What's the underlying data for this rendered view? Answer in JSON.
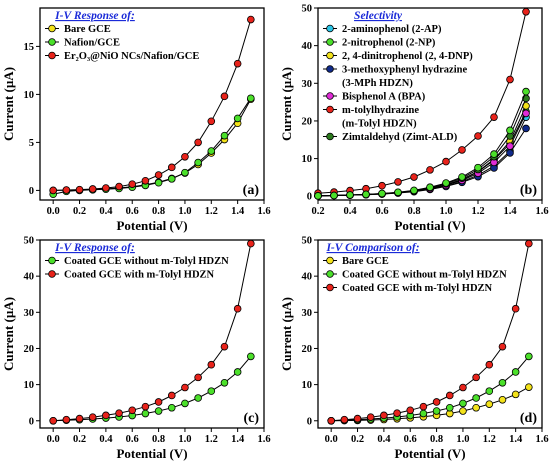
{
  "colors": {
    "yellow": "#f3e21a",
    "green": "#4be02a",
    "red": "#e8231b",
    "cyan": "#2bc6e8",
    "navy": "#102a8a",
    "magenta": "#e02bd6",
    "darkgreen": "#2c7a1e",
    "legend_title": "#1a2ad8",
    "line": "#000000"
  },
  "chart_data": [
    {
      "panel": "(a)",
      "type": "line",
      "legend_title": "I-V Response of:",
      "legend_position": "top-left",
      "xlabel": "Potential (V)",
      "ylabel": "Current (µA)",
      "xlim": [
        -0.1,
        1.6
      ],
      "ylim": [
        -1,
        19
      ],
      "xticks": [
        "0.0",
        "0.2",
        "0.4",
        "0.6",
        "0.8",
        "1.0",
        "1.2",
        "1.4",
        "1.6"
      ],
      "yticks": [
        "0",
        "5",
        "10",
        "15"
      ],
      "x": [
        0.0,
        0.1,
        0.2,
        0.3,
        0.4,
        0.5,
        0.6,
        0.7,
        0.8,
        0.9,
        1.0,
        1.1,
        1.2,
        1.3,
        1.4,
        1.5
      ],
      "series": [
        {
          "name": "Bare GCE",
          "color": "yellow",
          "values": [
            0.0,
            0.02,
            0.05,
            0.1,
            0.16,
            0.25,
            0.38,
            0.58,
            0.85,
            1.25,
            1.8,
            2.7,
            3.9,
            5.3,
            7.0,
            9.5
          ]
        },
        {
          "name": "Nafion/GCE",
          "color": "green",
          "values": [
            -0.4,
            -0.1,
            0.0,
            0.06,
            0.12,
            0.2,
            0.33,
            0.52,
            0.8,
            1.2,
            1.85,
            2.9,
            4.1,
            5.7,
            7.5,
            9.6
          ]
        },
        {
          "name": "Er₂O₃@NiO NCs/Nafion/GCE",
          "color": "red",
          "values": [
            0.0,
            0.04,
            0.08,
            0.15,
            0.25,
            0.4,
            0.65,
            1.0,
            1.6,
            2.4,
            3.5,
            5.0,
            7.2,
            9.8,
            13.2,
            17.8
          ]
        }
      ]
    },
    {
      "panel": "(b)",
      "type": "line",
      "legend_title": "Selectivity",
      "legend_position": "top-left",
      "xlabel": "Potential (V)",
      "ylabel": "Current (µA)",
      "xlim": [
        0.2,
        1.6
      ],
      "ylim": [
        -1,
        50
      ],
      "xticks": [
        "0.2",
        "0.4",
        "0.6",
        "0.8",
        "1.0",
        "1.2",
        "1.4",
        "1.6"
      ],
      "yticks": [
        "0",
        "10",
        "20",
        "30",
        "40",
        "50"
      ],
      "x": [
        0.2,
        0.3,
        0.4,
        0.5,
        0.6,
        0.7,
        0.8,
        0.9,
        1.0,
        1.1,
        1.2,
        1.3,
        1.4,
        1.5
      ],
      "series": [
        {
          "name": "2-aminophenol (2-AP)",
          "color": "cyan",
          "values": [
            0.1,
            0.2,
            0.3,
            0.45,
            0.6,
            0.9,
            1.3,
            1.9,
            2.7,
            3.9,
            5.6,
            8.0,
            12.0,
            21.0
          ]
        },
        {
          "name": "2-nitrophenol (2-NP)",
          "color": "green",
          "values": [
            0.1,
            0.2,
            0.3,
            0.45,
            0.65,
            0.95,
            1.4,
            2.1,
            3.0,
            4.4,
            6.5,
            9.6,
            14.0,
            22.5
          ]
        },
        {
          "name": "2, 4-dinitrophenol (2, 4-DNP)",
          "color": "yellow",
          "values": [
            0.1,
            0.2,
            0.3,
            0.45,
            0.65,
            0.95,
            1.4,
            2.1,
            3.0,
            4.5,
            6.6,
            9.8,
            14.6,
            24.0
          ]
        },
        {
          "name": "3-methoxyphenyl hydrazine\n(3-MPh HDZN)",
          "color": "navy",
          "values": [
            0.1,
            0.2,
            0.3,
            0.42,
            0.58,
            0.85,
            1.2,
            1.8,
            2.6,
            3.7,
            5.2,
            7.5,
            11.5,
            18.0
          ]
        },
        {
          "name": "Bisphenol A (BPA)",
          "color": "magenta",
          "values": [
            0.1,
            0.2,
            0.3,
            0.45,
            0.62,
            0.92,
            1.35,
            2.0,
            2.9,
            4.2,
            6.1,
            9.0,
            13.3,
            22.0
          ]
        },
        {
          "name": "m-tolylhydrazine\n(m-Tolyl HDZN)",
          "color": "red",
          "values": [
            0.8,
            1.1,
            1.5,
            2.0,
            2.8,
            3.8,
            5.1,
            7.0,
            9.2,
            12.3,
            16.0,
            21.0,
            31.0,
            49.0
          ]
        },
        {
          "name": "Zimtaldehyd (Zimt-ALD)",
          "color": "darkgreen",
          "values": [
            0.1,
            0.2,
            0.32,
            0.48,
            0.7,
            1.0,
            1.5,
            2.3,
            3.3,
            4.8,
            7.1,
            10.5,
            16.0,
            26.0
          ]
        },
        {
          "name": "",
          "color": "green",
          "values": [
            0.1,
            0.2,
            0.33,
            0.5,
            0.72,
            1.05,
            1.55,
            2.4,
            3.5,
            5.1,
            7.6,
            11.2,
            17.5,
            27.8
          ]
        }
      ]
    },
    {
      "panel": "(c)",
      "type": "line",
      "legend_title": "I-V Response of:",
      "legend_position": "top-left",
      "xlabel": "Potential (V)",
      "ylabel": "Current (µA)",
      "xlim": [
        -0.1,
        1.6
      ],
      "ylim": [
        -2,
        50
      ],
      "xticks": [
        "0.0",
        "0.2",
        "0.4",
        "0.6",
        "0.8",
        "1.0",
        "1.2",
        "1.4",
        "1.6"
      ],
      "yticks": [
        "0",
        "10",
        "20",
        "30",
        "40",
        "50"
      ],
      "x": [
        0.0,
        0.1,
        0.2,
        0.3,
        0.4,
        0.5,
        0.6,
        0.7,
        0.8,
        0.9,
        1.0,
        1.1,
        1.2,
        1.3,
        1.4,
        1.5
      ],
      "series": [
        {
          "name": "Coated GCE without m-Tolyl HDZN",
          "color": "green",
          "values": [
            0.0,
            0.15,
            0.3,
            0.5,
            0.75,
            1.05,
            1.45,
            2.0,
            2.7,
            3.6,
            4.8,
            6.3,
            8.2,
            10.5,
            13.5,
            17.8
          ]
        },
        {
          "name": "Coated GCE with m-Tolyl HDZN",
          "color": "red",
          "values": [
            0.0,
            0.3,
            0.6,
            1.0,
            1.5,
            2.1,
            2.9,
            3.9,
            5.2,
            7.0,
            9.2,
            12.0,
            15.5,
            20.5,
            31.0,
            49.0
          ]
        }
      ]
    },
    {
      "panel": "(d)",
      "type": "line",
      "legend_title": "I-V Comparison of:",
      "legend_position": "top-left",
      "xlabel": "Potential (V)",
      "ylabel": "Current (µA)",
      "xlim": [
        -0.1,
        1.6
      ],
      "ylim": [
        -2,
        50
      ],
      "xticks": [
        "0.0",
        "0.2",
        "0.4",
        "0.6",
        "0.8",
        "1.0",
        "1.2",
        "1.4",
        "1.6"
      ],
      "yticks": [
        "0",
        "10",
        "20",
        "30",
        "40",
        "50"
      ],
      "x": [
        0.0,
        0.1,
        0.2,
        0.3,
        0.4,
        0.5,
        0.6,
        0.7,
        0.8,
        0.9,
        1.0,
        1.1,
        1.2,
        1.3,
        1.4,
        1.5
      ],
      "series": [
        {
          "name": "Bare GCE",
          "color": "yellow",
          "values": [
            0.0,
            0.05,
            0.1,
            0.2,
            0.35,
            0.55,
            0.8,
            1.1,
            1.5,
            2.0,
            2.7,
            3.6,
            4.6,
            5.8,
            7.3,
            9.3
          ]
        },
        {
          "name": "Coated GCE without m-Tolyl HDZN",
          "color": "green",
          "values": [
            0.0,
            0.15,
            0.3,
            0.5,
            0.75,
            1.05,
            1.45,
            2.0,
            2.7,
            3.6,
            4.8,
            6.3,
            8.2,
            10.5,
            13.5,
            17.8
          ]
        },
        {
          "name": "Coated GCE with m-Tolyl HDZN",
          "color": "red",
          "values": [
            0.0,
            0.3,
            0.6,
            1.0,
            1.5,
            2.1,
            2.9,
            3.9,
            5.2,
            7.0,
            9.2,
            12.0,
            15.5,
            20.5,
            31.0,
            49.0
          ]
        }
      ]
    }
  ]
}
